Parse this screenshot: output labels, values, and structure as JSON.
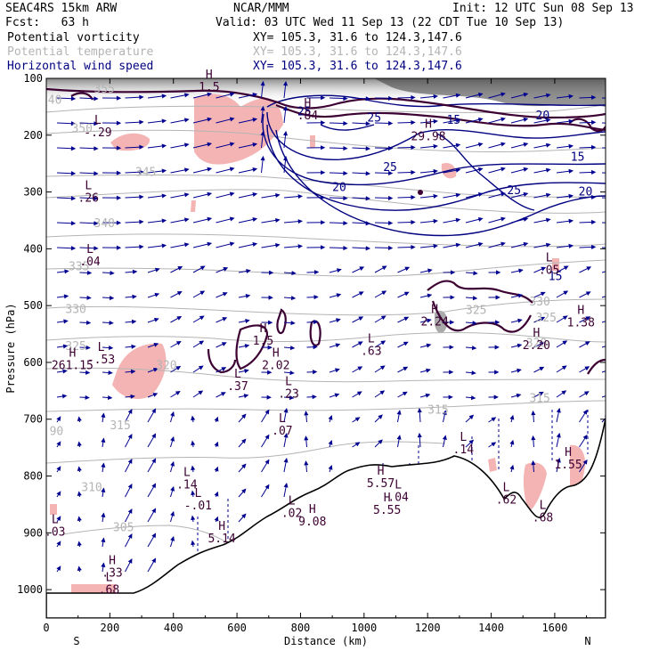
{
  "header": {
    "model": "SEAC4RS 15km ARW",
    "org": "NCAR/MMM",
    "init": "Init: 12 UTC Sun 08 Sep 13",
    "fcst": "Fcst:   63 h",
    "valid": "Valid: 03 UTC Wed 11 Sep 13 (22 CDT Tue 10 Sep 13)",
    "fields": [
      {
        "label": "Potential vorticity",
        "xy": "XY= 105.3, 31.6 to 124.3,147.6",
        "color": "#000000"
      },
      {
        "label": "Potential temperature",
        "xy": "XY= 105.3, 31.6 to 124.3,147.6",
        "color": "#b4b4b4"
      },
      {
        "label": "Horizontal wind speed",
        "xy": "XY= 105.3, 31.6 to 124.3,147.6",
        "color": "#000080"
      }
    ]
  },
  "chart_data": {
    "type": "cross-section",
    "xlabel": "Distance (km)",
    "ylabel": "Pressure (hPa)",
    "xlim": [
      0,
      1760
    ],
    "ylim": [
      1050,
      100
    ],
    "x_ticks": [
      0,
      200,
      400,
      600,
      800,
      1000,
      1200,
      1400,
      1600
    ],
    "y_ticks": [
      100,
      200,
      300,
      400,
      500,
      600,
      700,
      800,
      900,
      1000
    ],
    "x_end_labels": {
      "left": "S",
      "right": "N"
    },
    "colors": {
      "terrain": "#000000",
      "theta": "#b4b4b4",
      "wind": "#000080",
      "pv": "#3c0032",
      "pv_shade": "#f4b4b4",
      "vectors": "#000090"
    },
    "theta_labels": [
      {
        "x": 150,
        "p": 125,
        "text": "355"
      },
      {
        "x": 80,
        "p": 195,
        "text": "350"
      },
      {
        "x": 280,
        "p": 272,
        "text": "345"
      },
      {
        "x": 150,
        "p": 362,
        "text": "340"
      },
      {
        "x": 70,
        "p": 438,
        "text": "335"
      },
      {
        "x": 60,
        "p": 513,
        "text": "330"
      },
      {
        "x": 60,
        "p": 578,
        "text": "325"
      },
      {
        "x": 345,
        "p": 612,
        "text": "320"
      },
      {
        "x": 1520,
        "p": 500,
        "text": "330"
      },
      {
        "x": 1320,
        "p": 515,
        "text": "325"
      },
      {
        "x": 1540,
        "p": 528,
        "text": "325"
      },
      {
        "x": 1510,
        "p": 573,
        "text": "320"
      },
      {
        "x": 1200,
        "p": 690,
        "text": "315"
      },
      {
        "x": 1520,
        "p": 670,
        "text": "315"
      },
      {
        "x": 200,
        "p": 718,
        "text": "315"
      },
      {
        "x": 110,
        "p": 827,
        "text": "310"
      },
      {
        "x": 210,
        "p": 897,
        "text": "305"
      },
      {
        "x": 10,
        "p": 728,
        "text": "90"
      },
      {
        "x": 5,
        "p": 145,
        "text": "40"
      }
    ],
    "wind_labels": [
      {
        "x": 790,
        "p": 165,
        "text": "25"
      },
      {
        "x": 1010,
        "p": 176,
        "text": "25"
      },
      {
        "x": 1260,
        "p": 180,
        "text": "15"
      },
      {
        "x": 1540,
        "p": 172,
        "text": "20"
      },
      {
        "x": 1060,
        "p": 263,
        "text": "25"
      },
      {
        "x": 900,
        "p": 298,
        "text": "20"
      },
      {
        "x": 1675,
        "p": 306,
        "text": "20"
      },
      {
        "x": 1450,
        "p": 304,
        "text": "25"
      },
      {
        "x": 1650,
        "p": 245,
        "text": "15"
      },
      {
        "x": 1580,
        "p": 455,
        "text": "15"
      }
    ],
    "extrema": [
      {
        "x": 140,
        "p": 205,
        "type": "L",
        "value": "-.29"
      },
      {
        "x": 110,
        "p": 320,
        "type": "L",
        "value": ".26"
      },
      {
        "x": 115,
        "p": 432,
        "type": "L",
        "value": ".04"
      },
      {
        "x": 490,
        "p": 125,
        "type": "H",
        "value": "1.5"
      },
      {
        "x": 800,
        "p": 175,
        "type": "H",
        "value": ".84"
      },
      {
        "x": 1180,
        "p": 212,
        "type": "H",
        "value": "29.98"
      },
      {
        "x": 150,
        "p": 605,
        "type": "L",
        "value": "-.53"
      },
      {
        "x": 60,
        "p": 615,
        "type": "H",
        "value": "261.15"
      },
      {
        "x": 660,
        "p": 572,
        "type": "H",
        "value": "1.5"
      },
      {
        "x": 700,
        "p": 615,
        "type": "H",
        "value": "2.02"
      },
      {
        "x": 580,
        "p": 652,
        "type": "L",
        "value": ".37"
      },
      {
        "x": 740,
        "p": 665,
        "type": "L",
        "value": ".23"
      },
      {
        "x": 720,
        "p": 730,
        "type": "L",
        "value": ".07"
      },
      {
        "x": 1000,
        "p": 590,
        "type": "L",
        "value": ".63"
      },
      {
        "x": 1200,
        "p": 538,
        "type": "H",
        "value": "2.24"
      },
      {
        "x": 1520,
        "p": 580,
        "type": "H",
        "value": "2.20"
      },
      {
        "x": 1560,
        "p": 447,
        "type": "L",
        "value": ".05"
      },
      {
        "x": 1660,
        "p": 540,
        "type": "H",
        "value": "1.38"
      },
      {
        "x": 1290,
        "p": 763,
        "type": "L",
        "value": ".14"
      },
      {
        "x": 1620,
        "p": 790,
        "type": "H",
        "value": "1.55"
      },
      {
        "x": 420,
        "p": 825,
        "type": "L",
        "value": ".14"
      },
      {
        "x": 455,
        "p": 862,
        "type": "L",
        "value": "-.01"
      },
      {
        "x": 1030,
        "p": 823,
        "type": "H",
        "value": "5.57"
      },
      {
        "x": 1085,
        "p": 847,
        "type": "L",
        "value": ".04"
      },
      {
        "x": 1050,
        "p": 870,
        "type": "H",
        "value": "5.55"
      },
      {
        "x": 1425,
        "p": 852,
        "type": "L",
        "value": ".62"
      },
      {
        "x": 1540,
        "p": 883,
        "type": "L",
        "value": ".68"
      },
      {
        "x": 750,
        "p": 875,
        "type": "L",
        "value": ".02"
      },
      {
        "x": 815,
        "p": 890,
        "type": "H",
        "value": "9.08"
      },
      {
        "x": 530,
        "p": 920,
        "type": "H",
        "value": "5.14"
      },
      {
        "x": 185,
        "p": 980,
        "type": "H",
        "value": ".33"
      },
      {
        "x": 175,
        "p": 1010,
        "type": "L",
        "value": ".68"
      },
      {
        "x": 5,
        "p": 908,
        "type": "L",
        "value": ".03"
      }
    ]
  }
}
